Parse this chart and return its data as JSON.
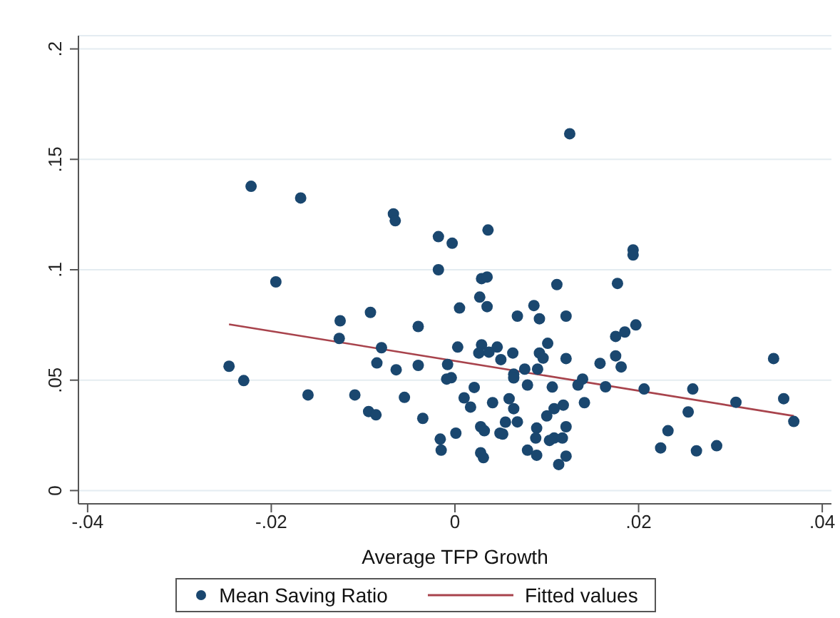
{
  "chart_data": {
    "type": "scatter",
    "xlabel": "Average TFP Growth",
    "xlim": [
      -0.041,
      0.041
    ],
    "xticks": [
      {
        "value": -0.04,
        "label": "-.04"
      },
      {
        "value": -0.02,
        "label": "-.02"
      },
      0,
      {
        "value": 0.02,
        "label": ".02"
      },
      {
        "value": 0.04,
        "label": ".04"
      }
    ],
    "ylim": [
      -0.006,
      0.206
    ],
    "yticks": [
      0,
      {
        "value": 0.05,
        "label": ".05"
      },
      {
        "value": 0.1,
        "label": ".1"
      },
      {
        "value": 0.15,
        "label": ".15"
      },
      {
        "value": 0.2,
        "label": ".2"
      }
    ],
    "grid": "y",
    "legend": "bottom",
    "series": [
      {
        "name": "Mean Saving Ratio",
        "marker": "circle",
        "color": "#1a476f",
        "x": [
          0.0125,
          -0.0018,
          -0.0003,
          0.0036,
          -0.0018,
          0.0029,
          0.0035,
          0.0027,
          0.0035,
          0.0005,
          0.0068,
          0.0086,
          0.0092,
          0.0111,
          0.0121,
          0.0177,
          0.0194,
          0.0194,
          0.0197,
          0.0185,
          0.0175,
          0.0175,
          0.0181,
          0.0158,
          0.0206,
          0.0259,
          0.0254,
          0.0232,
          0.0224,
          0.0263,
          0.0285,
          0.0306,
          0.0347,
          0.0358,
          0.0369,
          0.0003,
          0.0029,
          0.0026,
          0.0046,
          0.0037,
          0.005,
          0.0063,
          0.0101,
          0.0092,
          0.0096,
          0.009,
          0.0121,
          0.0076,
          0.0064,
          0.0064,
          -0.0008,
          -0.0004,
          -0.0009,
          -0.0035,
          0.0021,
          0.0079,
          0.0106,
          0.0139,
          0.0134,
          0.0164,
          0.001,
          0.0017,
          0.0041,
          0.0059,
          0.0064,
          0.0141,
          0.01,
          0.0108,
          0.0118,
          0.0055,
          0.0068,
          0.0028,
          0.0032,
          0.0001,
          0.0049,
          0.0052,
          0.0089,
          0.0088,
          0.0108,
          0.0103,
          0.0117,
          0.0121,
          0.0079,
          0.0089,
          0.0028,
          0.0031,
          0.0121,
          0.0113,
          -0.0016,
          -0.0015,
          -0.0222,
          -0.0168,
          -0.0067,
          -0.0065,
          -0.0195,
          -0.0246,
          -0.023,
          -0.016,
          -0.0125,
          -0.0126,
          -0.0092,
          -0.008,
          -0.0085,
          -0.0064,
          -0.004,
          -0.004,
          -0.0109,
          -0.0094,
          -0.0086,
          -0.0055
        ],
        "values": [
          0.1616,
          0.115,
          0.112,
          0.118,
          0.1,
          0.096,
          0.0967,
          0.0876,
          0.0833,
          0.0827,
          0.079,
          0.0838,
          0.0778,
          0.0933,
          0.079,
          0.0938,
          0.109,
          0.1067,
          0.075,
          0.0718,
          0.0698,
          0.061,
          0.056,
          0.0576,
          0.046,
          0.046,
          0.0356,
          0.0271,
          0.0193,
          0.018,
          0.0203,
          0.04,
          0.0598,
          0.0416,
          0.0313,
          0.065,
          0.066,
          0.0623,
          0.065,
          0.0627,
          0.0593,
          0.0623,
          0.0667,
          0.0623,
          0.06,
          0.055,
          0.0598,
          0.055,
          0.0527,
          0.051,
          0.0571,
          0.0511,
          0.0505,
          0.0327,
          0.0467,
          0.0478,
          0.0469,
          0.0505,
          0.0478,
          0.047,
          0.042,
          0.0378,
          0.0398,
          0.0416,
          0.0371,
          0.0398,
          0.0338,
          0.0371,
          0.0387,
          0.031,
          0.0311,
          0.0289,
          0.0271,
          0.026,
          0.026,
          0.0256,
          0.0283,
          0.0238,
          0.0238,
          0.0227,
          0.0238,
          0.0289,
          0.0183,
          0.016,
          0.0171,
          0.0149,
          0.0156,
          0.0118,
          0.0233,
          0.0183,
          0.1378,
          0.1325,
          0.1253,
          0.1222,
          0.0945,
          0.0563,
          0.0498,
          0.0433,
          0.0769,
          0.0689,
          0.0807,
          0.0647,
          0.0578,
          0.0547,
          0.0743,
          0.0567,
          0.0433,
          0.0358,
          0.0343,
          0.0422
        ]
      },
      {
        "name": "Fitted values",
        "type": "line",
        "color": "#a8434c",
        "x": [
          -0.0246,
          0.0369
        ],
        "values": [
          0.0753,
          0.0338
        ]
      }
    ]
  }
}
